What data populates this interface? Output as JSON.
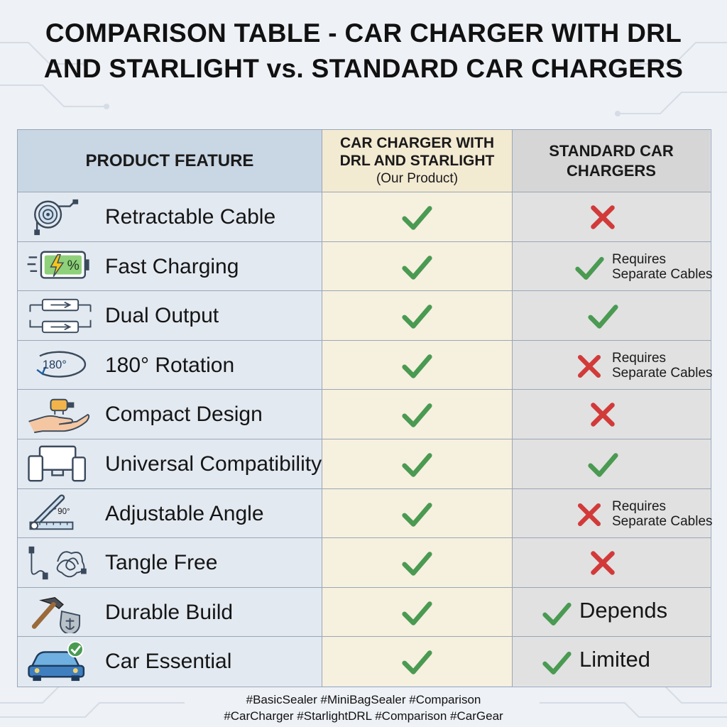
{
  "title": {
    "line1": "COMPARISON TABLE - CAR CHARGER WITH DRL",
    "line2": "AND STARLIGHT vs. STANDARD CAR CHARGERS"
  },
  "headers": {
    "feature": "PRODUCT FEATURE",
    "ours_line1": "CAR CHARGER WITH",
    "ours_line2": "DRL AND STARLIGHT",
    "ours_sub": "(Our Product)",
    "std_line1": "STANDARD CAR",
    "std_line2": "CHARGERS"
  },
  "colors": {
    "check": "#4a9a52",
    "cross": "#d23a3a"
  },
  "rows": [
    {
      "label": "Retractable Cable",
      "icon": "retractable-cable-icon",
      "ours": "check",
      "std": "cross",
      "note1": "",
      "note2": "",
      "text": ""
    },
    {
      "label": "Fast Charging",
      "icon": "battery-bolt-icon",
      "ours": "check",
      "std": "check",
      "note1": "Requires",
      "note2": "Separate Cables",
      "text": ""
    },
    {
      "label": "Dual Output",
      "icon": "dual-usb-icon",
      "ours": "check",
      "std": "check",
      "note1": "",
      "note2": "",
      "text": ""
    },
    {
      "label": "180° Rotation",
      "icon": "rotation-180-icon",
      "ours": "check",
      "std": "cross",
      "note1": "Requires",
      "note2": "Separate Cables",
      "text": ""
    },
    {
      "label": "Compact Design",
      "icon": "hand-charger-icon",
      "ours": "check",
      "std": "cross",
      "note1": "",
      "note2": "",
      "text": ""
    },
    {
      "label": "Universal Compatibility",
      "icon": "devices-icon",
      "ours": "check",
      "std": "check",
      "note1": "",
      "note2": "",
      "text": ""
    },
    {
      "label": "Adjustable Angle",
      "icon": "angle-90-icon",
      "ours": "check",
      "std": "cross",
      "note1": "Requires",
      "note2": "Separate Cables",
      "text": ""
    },
    {
      "label": "Tangle Free",
      "icon": "tangled-cable-icon",
      "ours": "check",
      "std": "cross",
      "note1": "",
      "note2": "",
      "text": ""
    },
    {
      "label": "Durable Build",
      "icon": "hammer-shield-icon",
      "ours": "check",
      "std": "check",
      "note1": "",
      "note2": "",
      "text": "Depends"
    },
    {
      "label": "Car Essential",
      "icon": "car-check-icon",
      "ours": "check",
      "std": "check",
      "note1": "",
      "note2": "",
      "text": "Limited"
    }
  ],
  "footer": {
    "line1": "#BasicSealer #MiniBagSealer #Comparison",
    "line2": "#CarCharger #StarlightDRL #Comparison #CarGear"
  }
}
